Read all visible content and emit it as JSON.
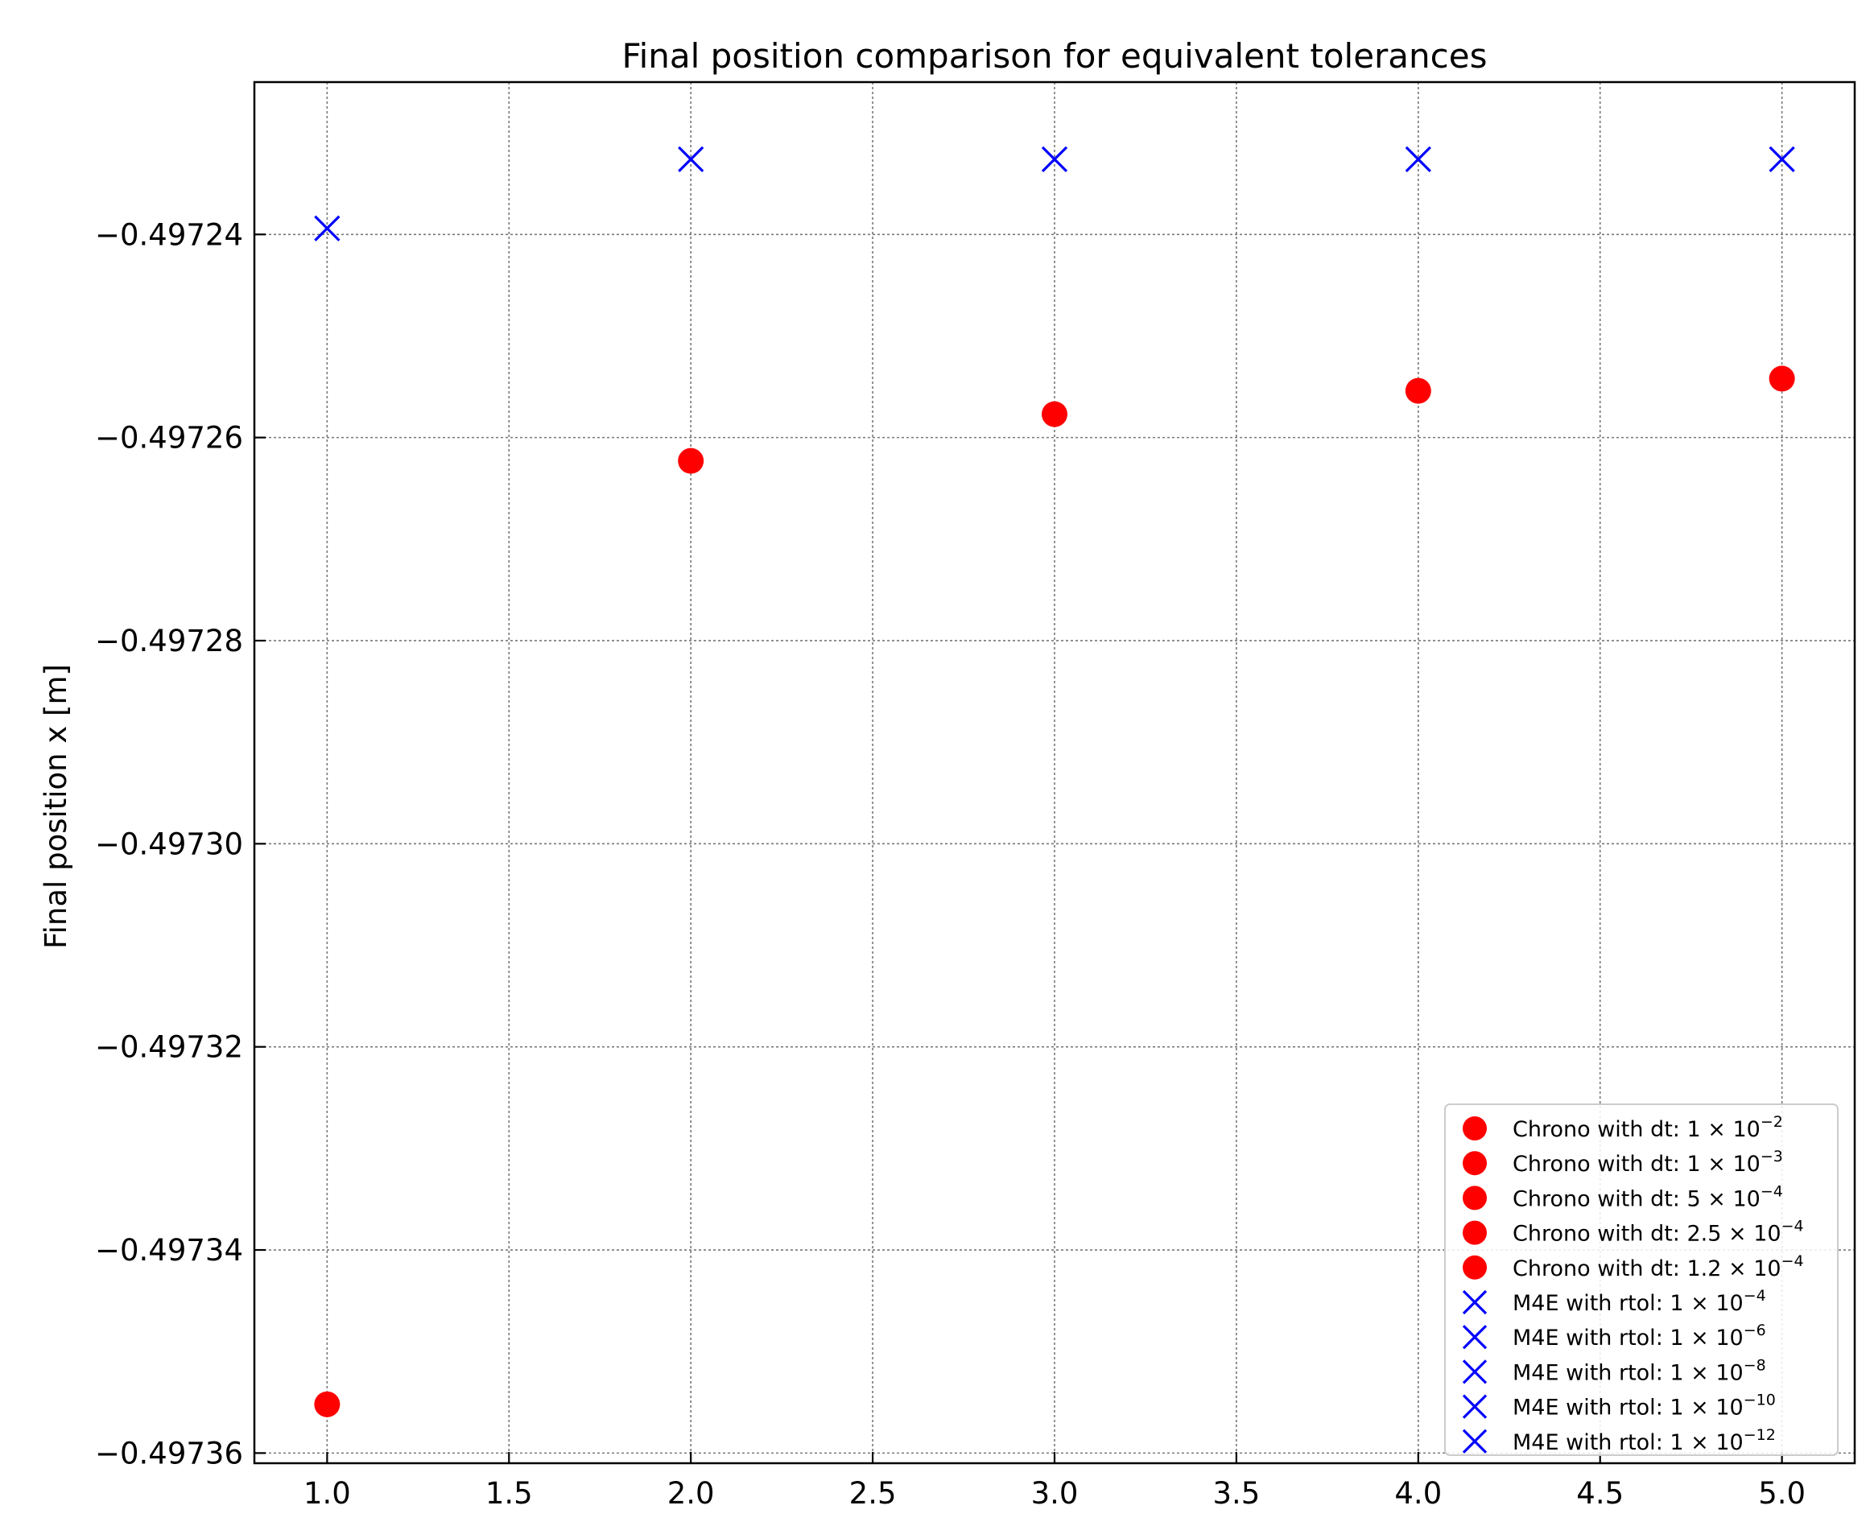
{
  "chart_data": {
    "type": "scatter",
    "title": "Final position comparison for equivalent tolerances",
    "xlabel": "",
    "ylabel": "Final position x [m]",
    "xlim": [
      0.8,
      5.2
    ],
    "ylim": [
      -0.497361,
      -0.497225
    ],
    "x_ticks": [
      1.0,
      1.5,
      2.0,
      2.5,
      3.0,
      3.5,
      4.0,
      4.5,
      5.0
    ],
    "x_tick_labels": [
      "1.0",
      "1.5",
      "2.0",
      "2.5",
      "3.0",
      "3.5",
      "4.0",
      "4.5",
      "5.0"
    ],
    "y_ticks": [
      -0.49724,
      -0.49726,
      -0.49728,
      -0.4973,
      -0.49732,
      -0.49734,
      -0.49736
    ],
    "y_tick_labels": [
      "−0.49724",
      "−0.49726",
      "−0.49728",
      "−0.49730",
      "−0.49732",
      "−0.49734",
      "−0.49736"
    ],
    "grid": true,
    "legend_position": "lower-right",
    "series": [
      {
        "name": "Chrono with dt: 1 × 10^−2",
        "label_text": "Chrono with dt:",
        "label_coef": "1 × 10",
        "label_exp": "−2",
        "marker": "circle",
        "color": "#ff0000",
        "x": [
          1.0
        ],
        "y": [
          -0.4973552
        ]
      },
      {
        "name": "Chrono with dt: 1 × 10^−3",
        "label_text": "Chrono with dt:",
        "label_coef": "1 × 10",
        "label_exp": "−3",
        "marker": "circle",
        "color": "#ff0000",
        "x": [
          2.0
        ],
        "y": [
          -0.4972623
        ]
      },
      {
        "name": "Chrono with dt: 5 × 10^−4",
        "label_text": "Chrono with dt:",
        "label_coef": "5 × 10",
        "label_exp": "−4",
        "marker": "circle",
        "color": "#ff0000",
        "x": [
          3.0
        ],
        "y": [
          -0.4972577
        ]
      },
      {
        "name": "Chrono with dt: 2.5 × 10^−4",
        "label_text": "Chrono with dt:",
        "label_coef": "2.5 × 10",
        "label_exp": "−4",
        "marker": "circle",
        "color": "#ff0000",
        "x": [
          4.0
        ],
        "y": [
          -0.4972554
        ]
      },
      {
        "name": "Chrono with dt: 1.2 × 10^−4",
        "label_text": "Chrono with dt:",
        "label_coef": "1.2 × 10",
        "label_exp": "−4",
        "marker": "circle",
        "color": "#ff0000",
        "x": [
          5.0
        ],
        "y": [
          -0.4972542
        ]
      },
      {
        "name": "M4E with rtol: 1 × 10^−4",
        "label_text": "M4E with rtol:",
        "label_coef": "1 × 10",
        "label_exp": "−4",
        "marker": "x",
        "color": "#0000ff",
        "x": [
          1.0
        ],
        "y": [
          -0.4972394
        ]
      },
      {
        "name": "M4E with rtol: 1 × 10^−6",
        "label_text": "M4E with rtol:",
        "label_coef": "1 × 10",
        "label_exp": "−6",
        "marker": "x",
        "color": "#0000ff",
        "x": [
          2.0
        ],
        "y": [
          -0.4972326
        ]
      },
      {
        "name": "M4E with rtol: 1 × 10^−8",
        "label_text": "M4E with rtol:",
        "label_coef": "1 × 10",
        "label_exp": "−8",
        "marker": "x",
        "color": "#0000ff",
        "x": [
          3.0
        ],
        "y": [
          -0.4972326
        ]
      },
      {
        "name": "M4E with rtol: 1 × 10^−10",
        "label_text": "M4E with rtol:",
        "label_coef": "1 × 10",
        "label_exp": "−10",
        "marker": "x",
        "color": "#0000ff",
        "x": [
          4.0
        ],
        "y": [
          -0.4972326
        ]
      },
      {
        "name": "M4E with rtol: 1 × 10^−12",
        "label_text": "M4E with rtol:",
        "label_coef": "1 × 10",
        "label_exp": "−12",
        "marker": "x",
        "color": "#0000ff",
        "x": [
          5.0
        ],
        "y": [
          -0.4972326
        ]
      }
    ]
  }
}
